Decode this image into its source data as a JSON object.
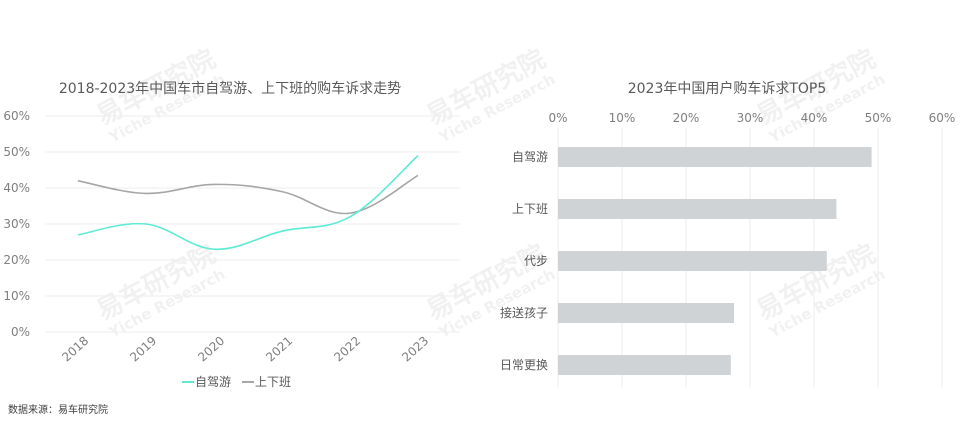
{
  "source": "数据来源：易车研究院",
  "watermark": {
    "cn": "易车研究院",
    "en": "Yiche Research"
  },
  "chart_data": [
    {
      "type": "line",
      "title": "2018-2023年中国车市自驾游、上下班的购车诉求走势",
      "x": [
        "2018",
        "2019",
        "2020",
        "2021",
        "2022",
        "2023"
      ],
      "ylim": [
        0,
        60
      ],
      "yticks": [
        "0%",
        "10%",
        "20%",
        "30%",
        "40%",
        "50%",
        "60%"
      ],
      "grid": true,
      "legend_position": "bottom",
      "series": [
        {
          "name": "自驾游",
          "color": "#5eead4",
          "values": [
            27,
            30,
            23,
            28,
            32,
            49
          ]
        },
        {
          "name": "上下班",
          "color": "#a6a6a6",
          "values": [
            42,
            38.5,
            41,
            39,
            33,
            43.5
          ]
        }
      ]
    },
    {
      "type": "bar",
      "orientation": "horizontal",
      "title": "2023年中国用户购车诉求TOP5",
      "categories": [
        "自驾游",
        "上下班",
        "代步",
        "接送孩子",
        "日常更换"
      ],
      "values": [
        49,
        43.5,
        42,
        27.5,
        27
      ],
      "xlim": [
        0,
        60
      ],
      "xticks": [
        "0%",
        "10%",
        "20%",
        "30%",
        "40%",
        "50%",
        "60%"
      ],
      "grid": true,
      "color": "#d0d3d6"
    }
  ]
}
